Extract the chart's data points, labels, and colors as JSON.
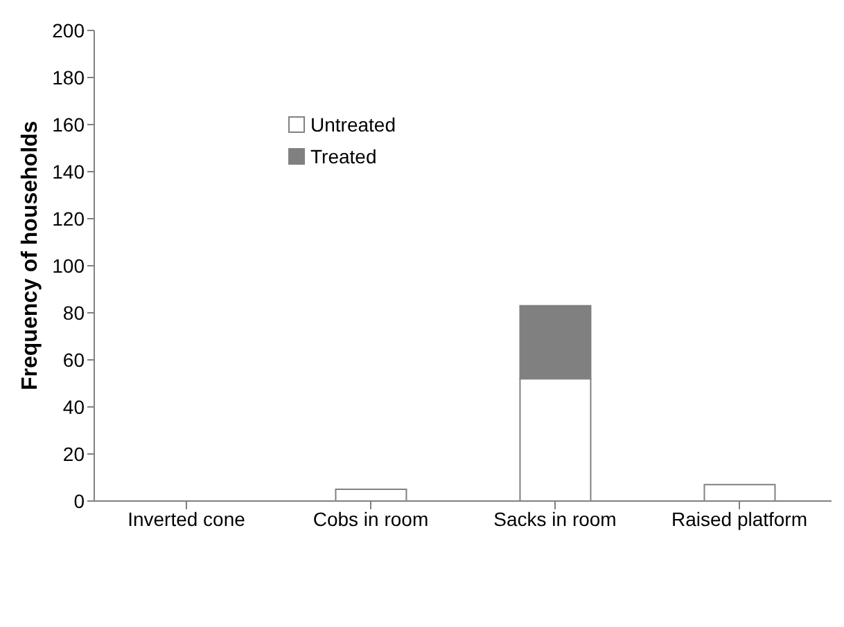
{
  "chart_data": {
    "type": "bar",
    "ylabel": "Frequency of households",
    "categories": [
      "Inverted cone",
      "Cobs in room",
      "Sacks in room",
      "Raised platform"
    ],
    "series": [
      {
        "name": "Untreated",
        "color": "#ffffff",
        "values": [
          0,
          5,
          52,
          7
        ]
      },
      {
        "name": "Treated",
        "color": "#808080",
        "values": [
          0,
          0,
          31,
          0
        ]
      }
    ],
    "stacked": true,
    "ylim": [
      0,
      200
    ],
    "yticks": [
      0,
      20,
      40,
      60,
      80,
      100,
      120,
      140,
      160,
      180,
      200
    ],
    "grid": false,
    "legend": "top left"
  }
}
